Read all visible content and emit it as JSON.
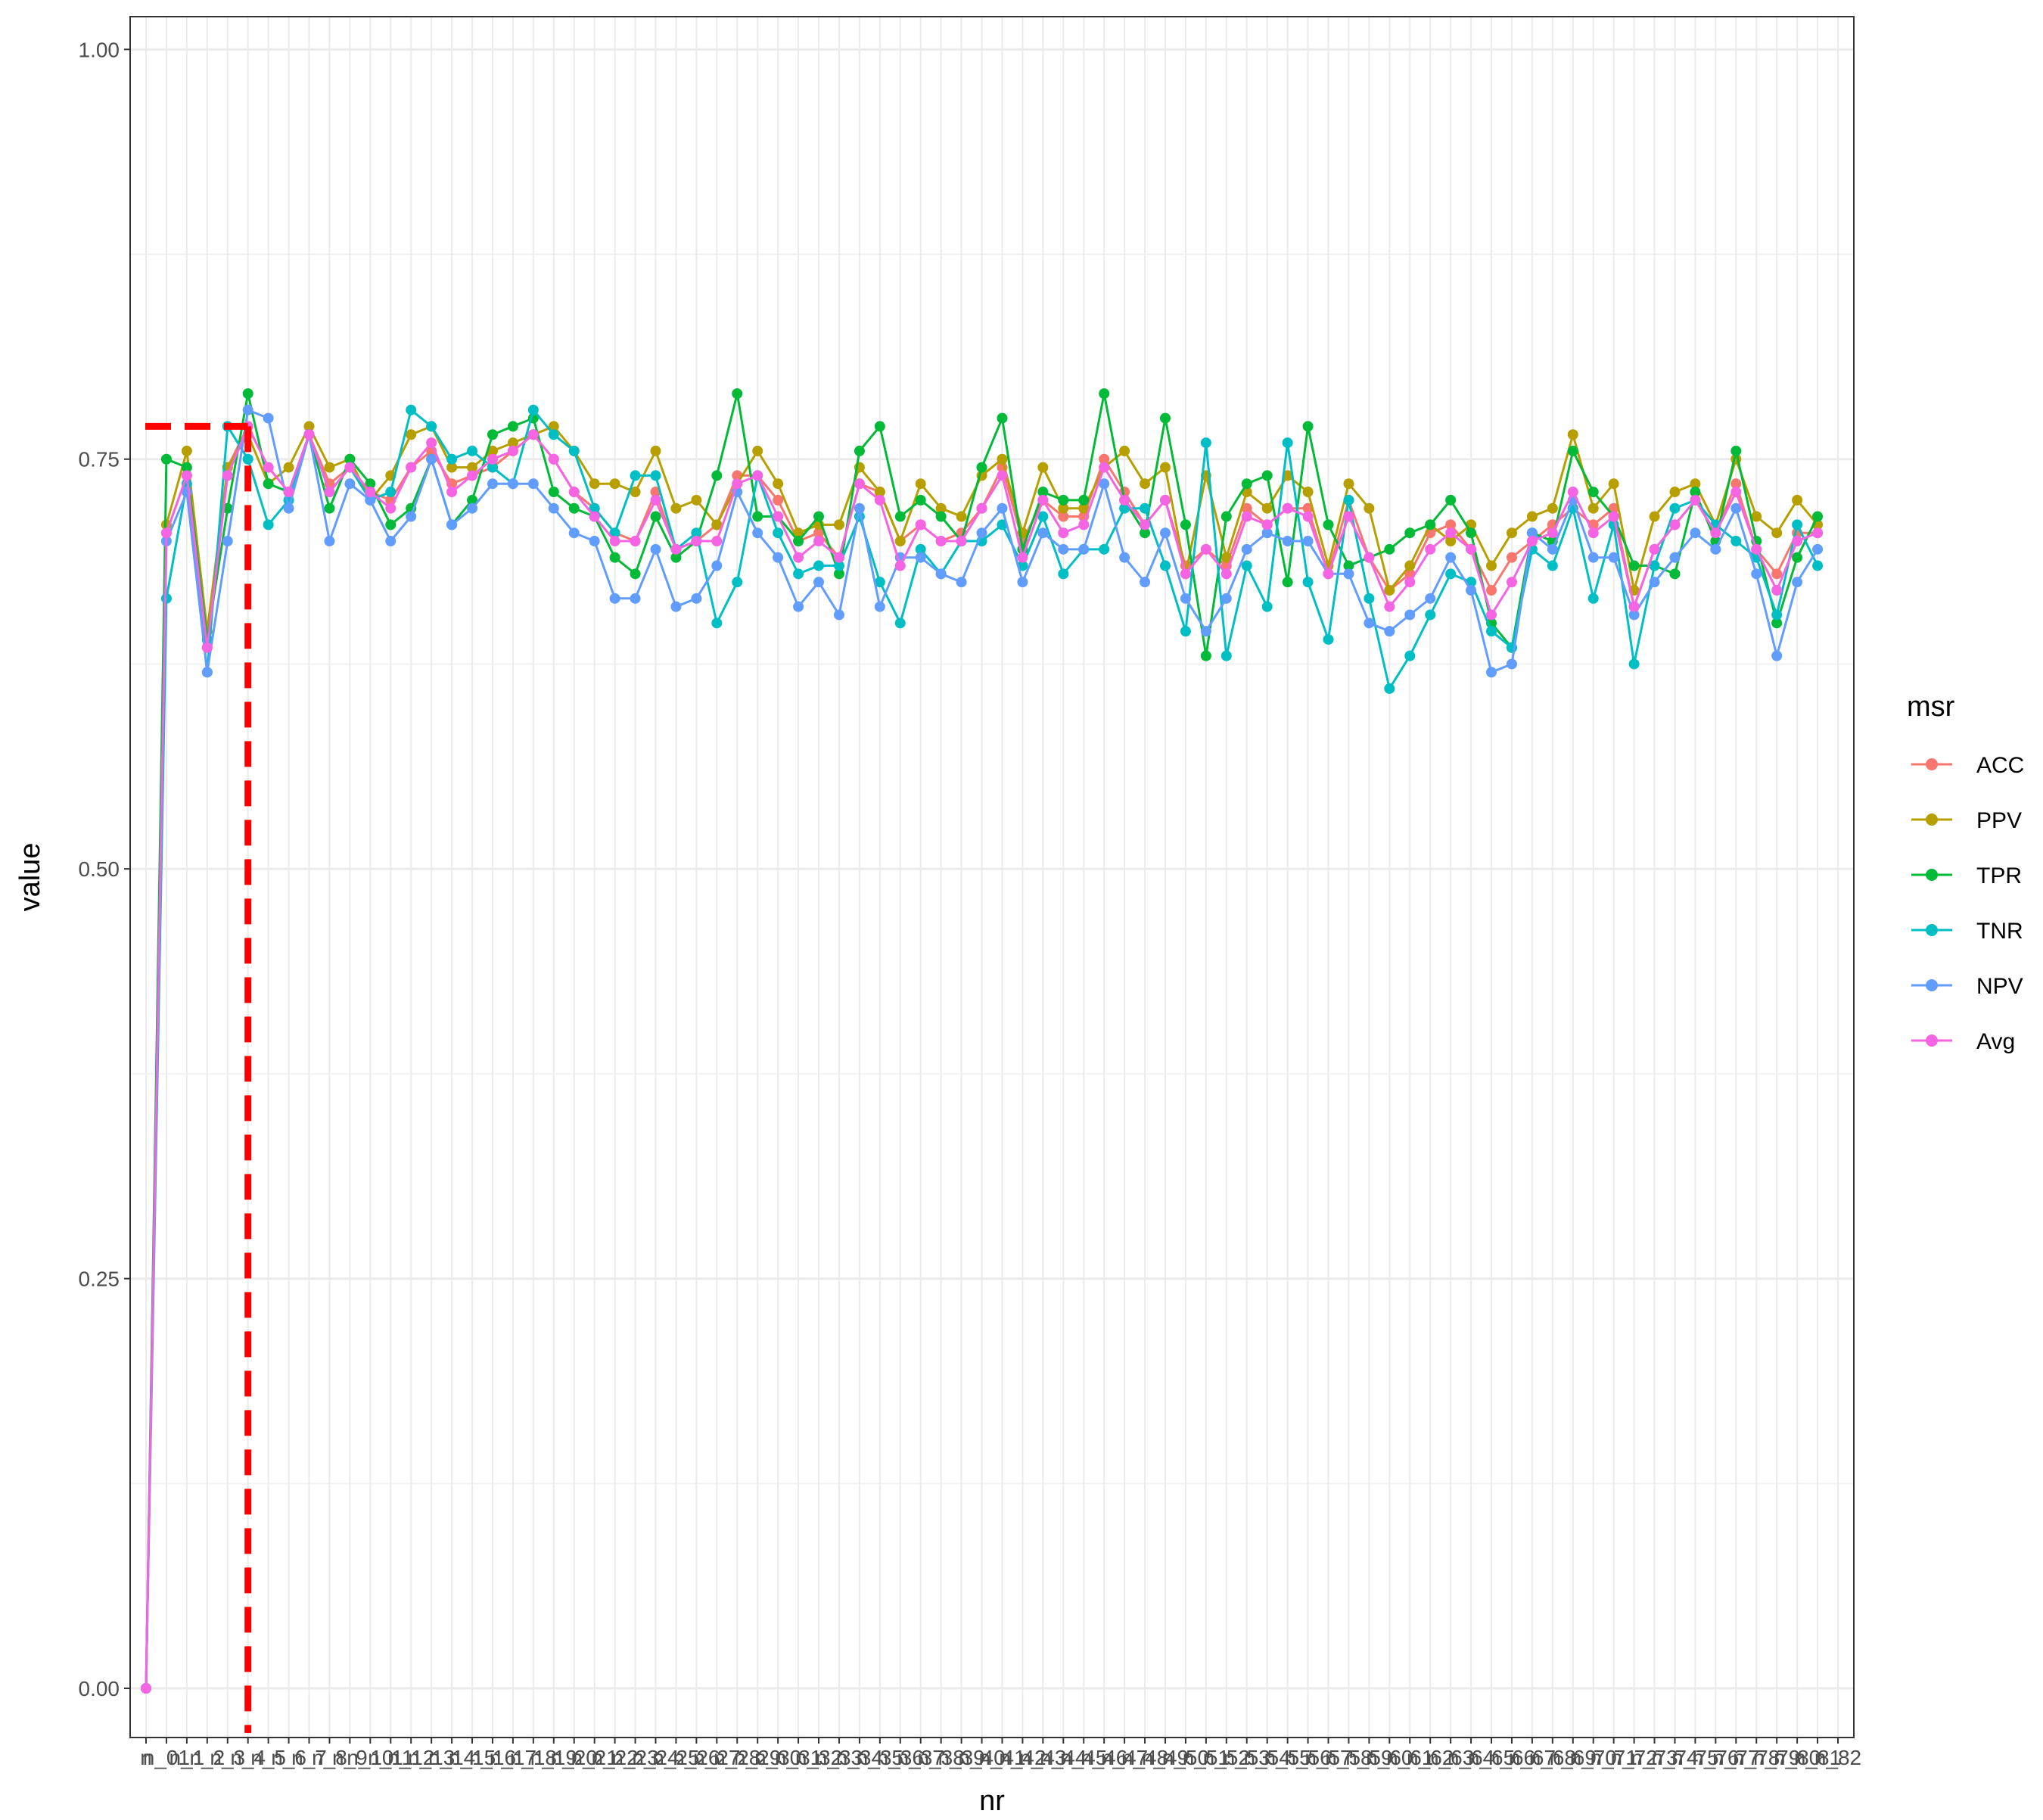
{
  "chart_data": {
    "type": "line",
    "xlabel": "nr",
    "ylabel": "value",
    "ylim": [
      -0.03,
      1.02
    ],
    "y_ticks": [
      0.0,
      0.25,
      0.5,
      0.75,
      1.0
    ],
    "y_tick_labels": [
      "0.00",
      "0.25",
      "0.50",
      "0.75",
      "1.00"
    ],
    "x_tick_labels": [
      "n",
      "n_01",
      "n_1",
      "n_2",
      "n_3",
      "n_4",
      "n_5",
      "n_6",
      "n_7",
      "n_8",
      "n_9",
      "n_10",
      "n_11",
      "n_12",
      "n_13",
      "n_14",
      "n_15",
      "n_16",
      "n_17",
      "n_18",
      "n_19",
      "n_20",
      "n_21",
      "n_22",
      "n_23",
      "n_24",
      "n_25",
      "n_26",
      "n_27",
      "n_28",
      "n_29",
      "n_30",
      "n_31",
      "n_32",
      "n_33",
      "n_34",
      "n_35",
      "n_36",
      "n_37",
      "n_38",
      "n_39",
      "n_40",
      "n_41",
      "n_42",
      "n_43",
      "n_44",
      "n_45",
      "n_46",
      "n_47",
      "n_48",
      "n_49",
      "n_50",
      "n_51",
      "n_52",
      "n_53",
      "n_54",
      "n_55",
      "n_56",
      "n_57",
      "n_58",
      "n_59",
      "n_60",
      "n_61",
      "n_62",
      "n_63",
      "n_64",
      "n_65",
      "n_66",
      "n_67",
      "n_68",
      "n_69",
      "n_70",
      "n_71",
      "n_72",
      "n_73",
      "n_74",
      "n_75",
      "n_76",
      "n_77",
      "n_78",
      "n_79",
      "n_80",
      "n_81",
      "n_82"
    ],
    "grid": true,
    "legend_title": "msr",
    "legend_position": "right",
    "reference_lines": {
      "threshold_x_label": "n_4",
      "threshold_y": 0.77,
      "color": "#ff0000",
      "style": "dashed"
    },
    "series": [
      {
        "name": "ACC",
        "color": "#F8766D",
        "values": [
          0,
          0.705,
          0.74,
          0.635,
          0.745,
          0.77,
          0.745,
          0.73,
          0.765,
          0.735,
          0.745,
          0.73,
          0.725,
          0.745,
          0.755,
          0.735,
          0.74,
          0.745,
          0.755,
          0.765,
          0.75,
          0.73,
          0.72,
          0.705,
          0.7,
          0.73,
          0.695,
          0.7,
          0.71,
          0.74,
          0.74,
          0.725,
          0.7,
          0.705,
          0.69,
          0.735,
          0.73,
          0.7,
          0.71,
          0.7,
          0.705,
          0.72,
          0.745,
          0.7,
          0.725,
          0.715,
          0.715,
          0.75,
          0.73,
          0.71,
          0.725,
          0.685,
          0.695,
          0.685,
          0.72,
          0.71,
          0.72,
          0.72,
          0.68,
          0.725,
          0.69,
          0.67,
          0.68,
          0.705,
          0.71,
          0.695,
          0.67,
          0.69,
          0.7,
          0.71,
          0.72,
          0.71,
          0.72,
          0.66,
          0.695,
          0.71,
          0.725,
          0.705,
          0.735,
          0.695,
          0.68,
          0.705,
          0.705
        ]
      },
      {
        "name": "PPV",
        "color": "#B79F00",
        "values": [
          0,
          0.71,
          0.755,
          0.645,
          0.745,
          0.765,
          0.735,
          0.745,
          0.77,
          0.745,
          0.75,
          0.725,
          0.74,
          0.765,
          0.77,
          0.745,
          0.745,
          0.755,
          0.76,
          0.765,
          0.77,
          0.755,
          0.735,
          0.735,
          0.73,
          0.755,
          0.72,
          0.725,
          0.71,
          0.735,
          0.755,
          0.735,
          0.705,
          0.71,
          0.71,
          0.745,
          0.73,
          0.7,
          0.735,
          0.72,
          0.715,
          0.74,
          0.75,
          0.705,
          0.745,
          0.72,
          0.72,
          0.745,
          0.755,
          0.735,
          0.745,
          0.68,
          0.74,
          0.69,
          0.73,
          0.72,
          0.74,
          0.73,
          0.685,
          0.735,
          0.72,
          0.67,
          0.685,
          0.71,
          0.7,
          0.71,
          0.685,
          0.705,
          0.715,
          0.72,
          0.765,
          0.72,
          0.735,
          0.67,
          0.715,
          0.73,
          0.735,
          0.71,
          0.75,
          0.715,
          0.705,
          0.725,
          0.71
        ]
      },
      {
        "name": "TPR",
        "color": "#00BA38",
        "values": [
          0,
          0.75,
          0.745,
          0.64,
          0.72,
          0.79,
          0.735,
          0.73,
          0.765,
          0.72,
          0.75,
          0.735,
          0.71,
          0.72,
          0.75,
          0.71,
          0.725,
          0.765,
          0.77,
          0.775,
          0.73,
          0.72,
          0.715,
          0.69,
          0.68,
          0.715,
          0.69,
          0.7,
          0.74,
          0.79,
          0.715,
          0.715,
          0.7,
          0.715,
          0.68,
          0.755,
          0.77,
          0.715,
          0.725,
          0.715,
          0.7,
          0.745,
          0.775,
          0.695,
          0.73,
          0.725,
          0.725,
          0.79,
          0.725,
          0.705,
          0.775,
          0.71,
          0.63,
          0.715,
          0.735,
          0.74,
          0.675,
          0.77,
          0.71,
          0.685,
          0.69,
          0.695,
          0.705,
          0.71,
          0.725,
          0.705,
          0.65,
          0.635,
          0.705,
          0.7,
          0.755,
          0.73,
          0.715,
          0.685,
          0.685,
          0.68,
          0.73,
          0.7,
          0.755,
          0.7,
          0.65,
          0.69,
          0.715
        ]
      },
      {
        "name": "TNR",
        "color": "#00BFC4",
        "values": [
          0,
          0.665,
          0.735,
          0.62,
          0.77,
          0.75,
          0.71,
          0.725,
          0.765,
          0.73,
          0.745,
          0.725,
          0.73,
          0.78,
          0.77,
          0.75,
          0.755,
          0.745,
          0.735,
          0.78,
          0.765,
          0.755,
          0.72,
          0.705,
          0.74,
          0.74,
          0.695,
          0.705,
          0.65,
          0.675,
          0.74,
          0.705,
          0.68,
          0.685,
          0.685,
          0.715,
          0.675,
          0.65,
          0.695,
          0.68,
          0.7,
          0.7,
          0.71,
          0.685,
          0.715,
          0.68,
          0.695,
          0.695,
          0.72,
          0.72,
          0.685,
          0.645,
          0.76,
          0.63,
          0.685,
          0.66,
          0.76,
          0.675,
          0.64,
          0.725,
          0.665,
          0.61,
          0.63,
          0.655,
          0.68,
          0.675,
          0.645,
          0.635,
          0.695,
          0.685,
          0.72,
          0.665,
          0.71,
          0.625,
          0.685,
          0.72,
          0.725,
          0.71,
          0.7,
          0.69,
          0.655,
          0.71,
          0.685
        ]
      },
      {
        "name": "NPV",
        "color": "#619CFF",
        "values": [
          0,
          0.7,
          0.73,
          0.62,
          0.7,
          0.78,
          0.775,
          0.72,
          0.765,
          0.7,
          0.735,
          0.725,
          0.7,
          0.715,
          0.75,
          0.71,
          0.72,
          0.735,
          0.735,
          0.735,
          0.72,
          0.705,
          0.7,
          0.665,
          0.665,
          0.695,
          0.66,
          0.665,
          0.685,
          0.73,
          0.705,
          0.69,
          0.66,
          0.675,
          0.655,
          0.72,
          0.66,
          0.69,
          0.69,
          0.68,
          0.675,
          0.705,
          0.72,
          0.675,
          0.705,
          0.695,
          0.695,
          0.735,
          0.69,
          0.675,
          0.705,
          0.665,
          0.645,
          0.665,
          0.695,
          0.705,
          0.7,
          0.7,
          0.68,
          0.68,
          0.65,
          0.645,
          0.655,
          0.665,
          0.69,
          0.67,
          0.62,
          0.625,
          0.705,
          0.695,
          0.725,
          0.69,
          0.69,
          0.655,
          0.675,
          0.69,
          0.705,
          0.695,
          0.72,
          0.68,
          0.63,
          0.675,
          0.695
        ]
      },
      {
        "name": "Avg",
        "color": "#F564E3",
        "values": [
          0,
          0.705,
          0.74,
          0.635,
          0.74,
          0.77,
          0.745,
          0.73,
          0.765,
          0.73,
          0.745,
          0.73,
          0.72,
          0.745,
          0.76,
          0.73,
          0.74,
          0.75,
          0.755,
          0.765,
          0.75,
          0.73,
          0.715,
          0.7,
          0.7,
          0.725,
          0.695,
          0.7,
          0.7,
          0.735,
          0.74,
          0.715,
          0.69,
          0.7,
          0.69,
          0.735,
          0.725,
          0.685,
          0.71,
          0.7,
          0.7,
          0.72,
          0.74,
          0.69,
          0.725,
          0.705,
          0.71,
          0.745,
          0.725,
          0.71,
          0.725,
          0.68,
          0.695,
          0.68,
          0.715,
          0.71,
          0.72,
          0.715,
          0.68,
          0.715,
          0.69,
          0.66,
          0.675,
          0.695,
          0.705,
          0.695,
          0.655,
          0.675,
          0.7,
          0.705,
          0.73,
          0.705,
          0.715,
          0.66,
          0.695,
          0.71,
          0.725,
          0.705,
          0.73,
          0.695,
          0.67,
          0.7,
          0.705
        ]
      }
    ]
  }
}
